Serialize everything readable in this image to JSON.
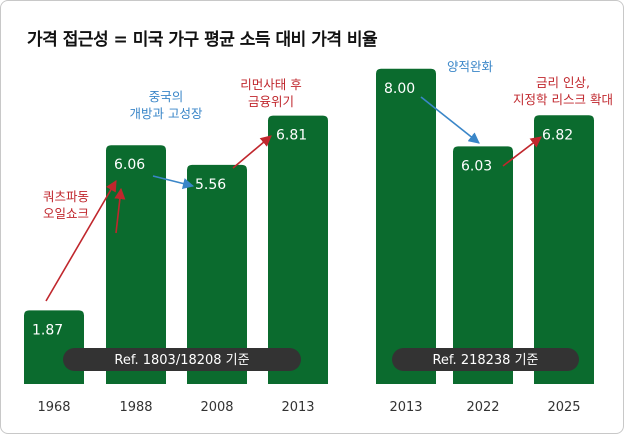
{
  "title": "가격 접근성 = 미국 가구 평균 소득 대비 가격 비율",
  "colors": {
    "bar": "#0b6b2e",
    "ref_pill": "#333333",
    "up_arrow": "#c0272d",
    "down_arrow": "#3a86c8"
  },
  "chart_data": [
    {
      "type": "bar",
      "categories": [
        "1968",
        "1988",
        "2008",
        "2013"
      ],
      "values": [
        1.87,
        6.06,
        5.56,
        6.81
      ],
      "value_labels": [
        "1.87",
        "6.06",
        "5.56",
        "6.81"
      ],
      "reference": "Ref. 1803/18208 기준",
      "annotations": [
        {
          "lines": [
            "쿼츠파동",
            "오일쇼크"
          ],
          "color": "up"
        },
        {
          "lines": [
            "중국의",
            "개방과 고성장"
          ],
          "color": "down"
        },
        {
          "lines": [
            "리먼사태 후",
            "금융위기"
          ],
          "color": "up"
        }
      ]
    },
    {
      "type": "bar",
      "categories": [
        "2013",
        "2022",
        "2025"
      ],
      "values": [
        8.0,
        6.03,
        6.82
      ],
      "value_labels": [
        "8.00",
        "6.03",
        "6.82"
      ],
      "reference": "Ref. 218238 기준",
      "annotations": [
        {
          "lines": [
            "양적완화"
          ],
          "color": "down"
        },
        {
          "lines": [
            "금리 인상,",
            "지정학 리스크 확대"
          ],
          "color": "up"
        }
      ]
    }
  ]
}
